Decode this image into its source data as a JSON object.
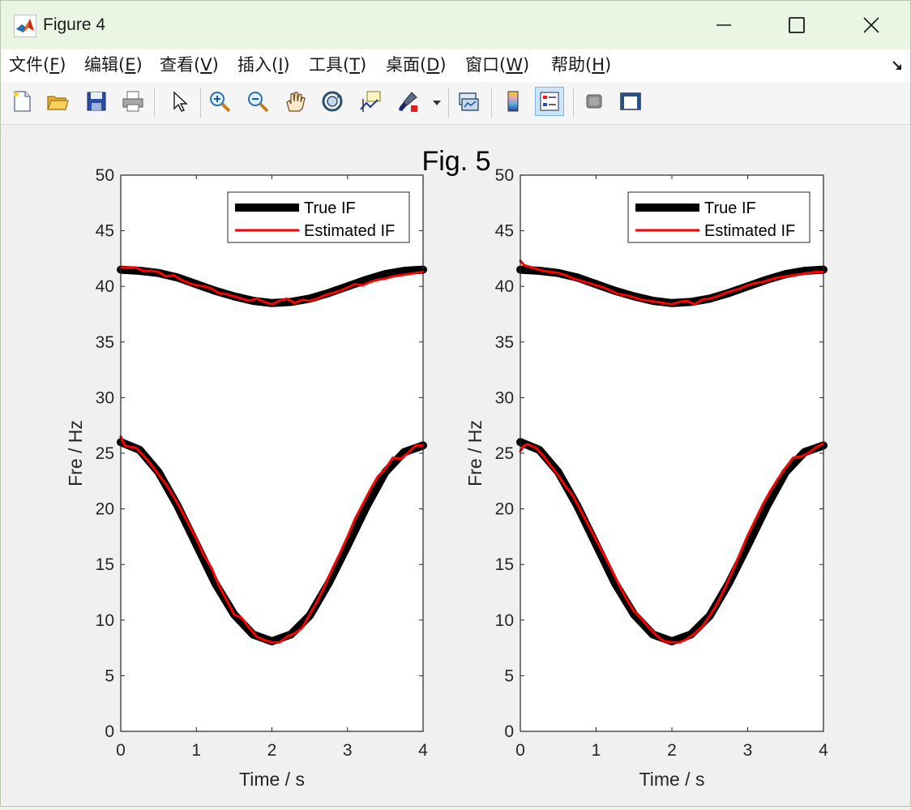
{
  "window": {
    "title": "Figure 4",
    "controls": [
      "minimize",
      "maximize",
      "close"
    ]
  },
  "menu": {
    "items": [
      {
        "label": "文件(",
        "key": "F",
        "tail": ")"
      },
      {
        "label": "编辑(",
        "key": "E",
        "tail": ")"
      },
      {
        "label": "查看(",
        "key": "V",
        "tail": ")"
      },
      {
        "label": "插入(",
        "key": "I",
        "tail": ")"
      },
      {
        "label": "工具(",
        "key": "T",
        "tail": ")"
      },
      {
        "label": "桌面(",
        "key": "D",
        "tail": ")"
      },
      {
        "label": "窗口(",
        "key": "W",
        "tail": ")"
      },
      {
        "label": "帮助(",
        "key": "H",
        "tail": ")"
      }
    ]
  },
  "toolbar": {
    "icons": [
      "new-figure-icon",
      "open-file-icon",
      "save-icon",
      "print-icon",
      "pointer-icon",
      "zoom-in-icon",
      "zoom-out-icon",
      "pan-icon",
      "rotate-3d-icon",
      "data-cursor-icon",
      "brush-icon",
      "link-plot-icon",
      "colorbar-icon",
      "legend-icon",
      "hide-plot-tools-icon",
      "show-plot-tools-icon"
    ],
    "active": "legend-icon"
  },
  "figure": {
    "suptitle": "Fig. 5"
  },
  "chart_data": [
    {
      "type": "line",
      "title": "",
      "xlabel": "Time / s",
      "ylabel": "Fre / Hz",
      "xlim": [
        0,
        4
      ],
      "ylim": [
        0,
        50
      ],
      "xticks": [
        0,
        1,
        2,
        3,
        4
      ],
      "yticks": [
        0,
        5,
        10,
        15,
        20,
        25,
        30,
        35,
        40,
        45,
        50
      ],
      "legend": {
        "placement": "top-right",
        "entries": [
          "True IF",
          "Estimated IF"
        ]
      },
      "series": [
        {
          "name": "True IF",
          "color": "#000000",
          "component": "upper",
          "x": [
            0,
            0.25,
            0.5,
            0.75,
            1,
            1.25,
            1.5,
            1.75,
            2,
            2.25,
            2.5,
            2.75,
            3,
            3.25,
            3.5,
            3.75,
            4
          ],
          "values": [
            41.5,
            41.4,
            41.2,
            40.8,
            40.2,
            39.6,
            39.1,
            38.7,
            38.5,
            38.6,
            38.9,
            39.4,
            40.0,
            40.6,
            41.1,
            41.4,
            41.5
          ]
        },
        {
          "name": "True IF",
          "color": "#000000",
          "component": "lower",
          "x": [
            0,
            0.25,
            0.5,
            0.75,
            1,
            1.25,
            1.5,
            1.75,
            2,
            2.25,
            2.5,
            2.75,
            3,
            3.25,
            3.5,
            3.75,
            4
          ],
          "values": [
            26.0,
            25.3,
            23.3,
            20.3,
            16.8,
            13.3,
            10.5,
            8.7,
            8.1,
            8.7,
            10.4,
            13.3,
            16.7,
            20.2,
            23.3,
            25.1,
            25.7
          ]
        },
        {
          "name": "Estimated IF",
          "color": "#ff0000",
          "component": "upper",
          "x": [
            0,
            0.1,
            0.2,
            0.3,
            0.4,
            0.5,
            0.6,
            0.7,
            0.8,
            0.9,
            1.0,
            1.1,
            1.2,
            1.3,
            1.4,
            1.5,
            1.6,
            1.7,
            1.8,
            1.9,
            2.0,
            2.1,
            2.2,
            2.3,
            2.4,
            2.5,
            2.6,
            2.7,
            2.8,
            2.9,
            3.0,
            3.1,
            3.2,
            3.3,
            3.4,
            3.5,
            3.6,
            3.7,
            3.8,
            3.9,
            4.0
          ],
          "values": [
            41.7,
            41.7,
            41.7,
            41.4,
            41.4,
            41.3,
            40.9,
            41.0,
            40.6,
            40.3,
            40.1,
            40.0,
            39.8,
            39.4,
            39.3,
            39.1,
            38.9,
            38.7,
            38.9,
            38.6,
            38.4,
            38.7,
            38.9,
            38.5,
            38.8,
            38.7,
            38.9,
            39.2,
            39.4,
            39.6,
            39.9,
            40.2,
            40.1,
            40.4,
            40.6,
            40.7,
            40.9,
            41.0,
            41.1,
            41.2,
            41.3
          ]
        },
        {
          "name": "Estimated IF",
          "color": "#ff0000",
          "component": "lower",
          "x": [
            0,
            0.05,
            0.1,
            0.2,
            0.3,
            0.4,
            0.5,
            0.6,
            0.7,
            0.8,
            0.9,
            1.0,
            1.1,
            1.2,
            1.3,
            1.4,
            1.5,
            1.6,
            1.7,
            1.8,
            1.9,
            2.0,
            2.1,
            2.2,
            2.3,
            2.4,
            2.5,
            2.6,
            2.7,
            2.8,
            2.9,
            3.0,
            3.1,
            3.2,
            3.3,
            3.4,
            3.5,
            3.6,
            3.7,
            3.8,
            3.9,
            4.0
          ],
          "values": [
            26.5,
            25.7,
            25.6,
            25.5,
            24.8,
            24.0,
            23.1,
            22.2,
            21.1,
            19.9,
            18.6,
            17.3,
            15.8,
            14.7,
            13.1,
            11.8,
            10.5,
            10.2,
            9.3,
            8.5,
            8.2,
            8.0,
            8.0,
            8.5,
            8.8,
            9.3,
            10.5,
            11.7,
            13.1,
            14.6,
            16.0,
            17.5,
            19.1,
            20.4,
            21.7,
            22.9,
            23.6,
            24.6,
            24.5,
            25.0,
            25.7,
            25.7
          ]
        }
      ]
    },
    {
      "type": "line",
      "title": "",
      "xlabel": "Time / s",
      "ylabel": "Fre / Hz",
      "xlim": [
        0,
        4
      ],
      "ylim": [
        0,
        50
      ],
      "xticks": [
        0,
        1,
        2,
        3,
        4
      ],
      "yticks": [
        0,
        5,
        10,
        15,
        20,
        25,
        30,
        35,
        40,
        45,
        50
      ],
      "legend": {
        "placement": "top-right",
        "entries": [
          "True IF",
          "Estimated IF"
        ]
      },
      "series": [
        {
          "name": "True IF",
          "color": "#000000",
          "component": "upper",
          "x": [
            0,
            0.25,
            0.5,
            0.75,
            1,
            1.25,
            1.5,
            1.75,
            2,
            2.25,
            2.5,
            2.75,
            3,
            3.25,
            3.5,
            3.75,
            4
          ],
          "values": [
            41.5,
            41.4,
            41.2,
            40.8,
            40.2,
            39.6,
            39.1,
            38.7,
            38.5,
            38.6,
            38.9,
            39.4,
            40.0,
            40.6,
            41.1,
            41.4,
            41.5
          ]
        },
        {
          "name": "True IF",
          "color": "#000000",
          "component": "lower",
          "x": [
            0,
            0.25,
            0.5,
            0.75,
            1,
            1.25,
            1.5,
            1.75,
            2,
            2.25,
            2.5,
            2.75,
            3,
            3.25,
            3.5,
            3.75,
            4
          ],
          "values": [
            26.0,
            25.3,
            23.3,
            20.3,
            16.8,
            13.3,
            10.5,
            8.7,
            8.1,
            8.7,
            10.4,
            13.3,
            16.7,
            20.2,
            23.3,
            25.1,
            25.7
          ]
        },
        {
          "name": "Estimated IF",
          "color": "#ff0000",
          "component": "upper",
          "x": [
            0,
            0.05,
            0.1,
            0.2,
            0.3,
            0.4,
            0.5,
            0.6,
            0.7,
            0.8,
            0.9,
            1.0,
            1.1,
            1.2,
            1.3,
            1.4,
            1.5,
            1.6,
            1.7,
            1.8,
            1.9,
            2.0,
            2.1,
            2.2,
            2.3,
            2.4,
            2.5,
            2.6,
            2.7,
            2.8,
            2.9,
            3.0,
            3.1,
            3.2,
            3.3,
            3.4,
            3.5,
            3.6,
            3.7,
            3.8,
            3.9,
            4.0
          ],
          "values": [
            42.3,
            41.9,
            41.8,
            41.6,
            41.4,
            41.3,
            41.2,
            41.0,
            40.7,
            40.5,
            40.3,
            40.1,
            39.9,
            39.6,
            39.3,
            39.2,
            39.0,
            38.8,
            38.7,
            38.6,
            38.5,
            38.4,
            38.6,
            38.7,
            38.4,
            38.8,
            38.9,
            39.1,
            39.4,
            39.6,
            39.8,
            40.1,
            40.3,
            40.4,
            40.6,
            40.8,
            40.9,
            41.0,
            41.1,
            41.2,
            41.3,
            41.3
          ]
        },
        {
          "name": "Estimated IF",
          "color": "#ff0000",
          "component": "lower",
          "x": [
            0,
            0.05,
            0.1,
            0.2,
            0.3,
            0.4,
            0.5,
            0.6,
            0.7,
            0.8,
            0.9,
            1.0,
            1.1,
            1.2,
            1.3,
            1.4,
            1.5,
            1.6,
            1.7,
            1.8,
            1.9,
            2.0,
            2.1,
            2.2,
            2.3,
            2.4,
            2.5,
            2.6,
            2.7,
            2.8,
            2.9,
            3.0,
            3.1,
            3.2,
            3.3,
            3.4,
            3.5,
            3.6,
            3.7,
            3.8,
            3.9,
            4.0
          ],
          "values": [
            25.2,
            25.7,
            25.8,
            25.5,
            24.8,
            23.9,
            23.0,
            22.0,
            21.1,
            19.8,
            18.5,
            17.2,
            15.9,
            14.6,
            13.2,
            11.9,
            10.8,
            10.1,
            9.3,
            8.6,
            8.1,
            8.0,
            8.0,
            8.3,
            8.8,
            9.4,
            10.4,
            11.5,
            12.9,
            14.4,
            16.0,
            17.6,
            19.0,
            20.4,
            21.6,
            22.7,
            23.7,
            24.6,
            24.7,
            25.0,
            25.5,
            25.9
          ]
        }
      ]
    }
  ]
}
